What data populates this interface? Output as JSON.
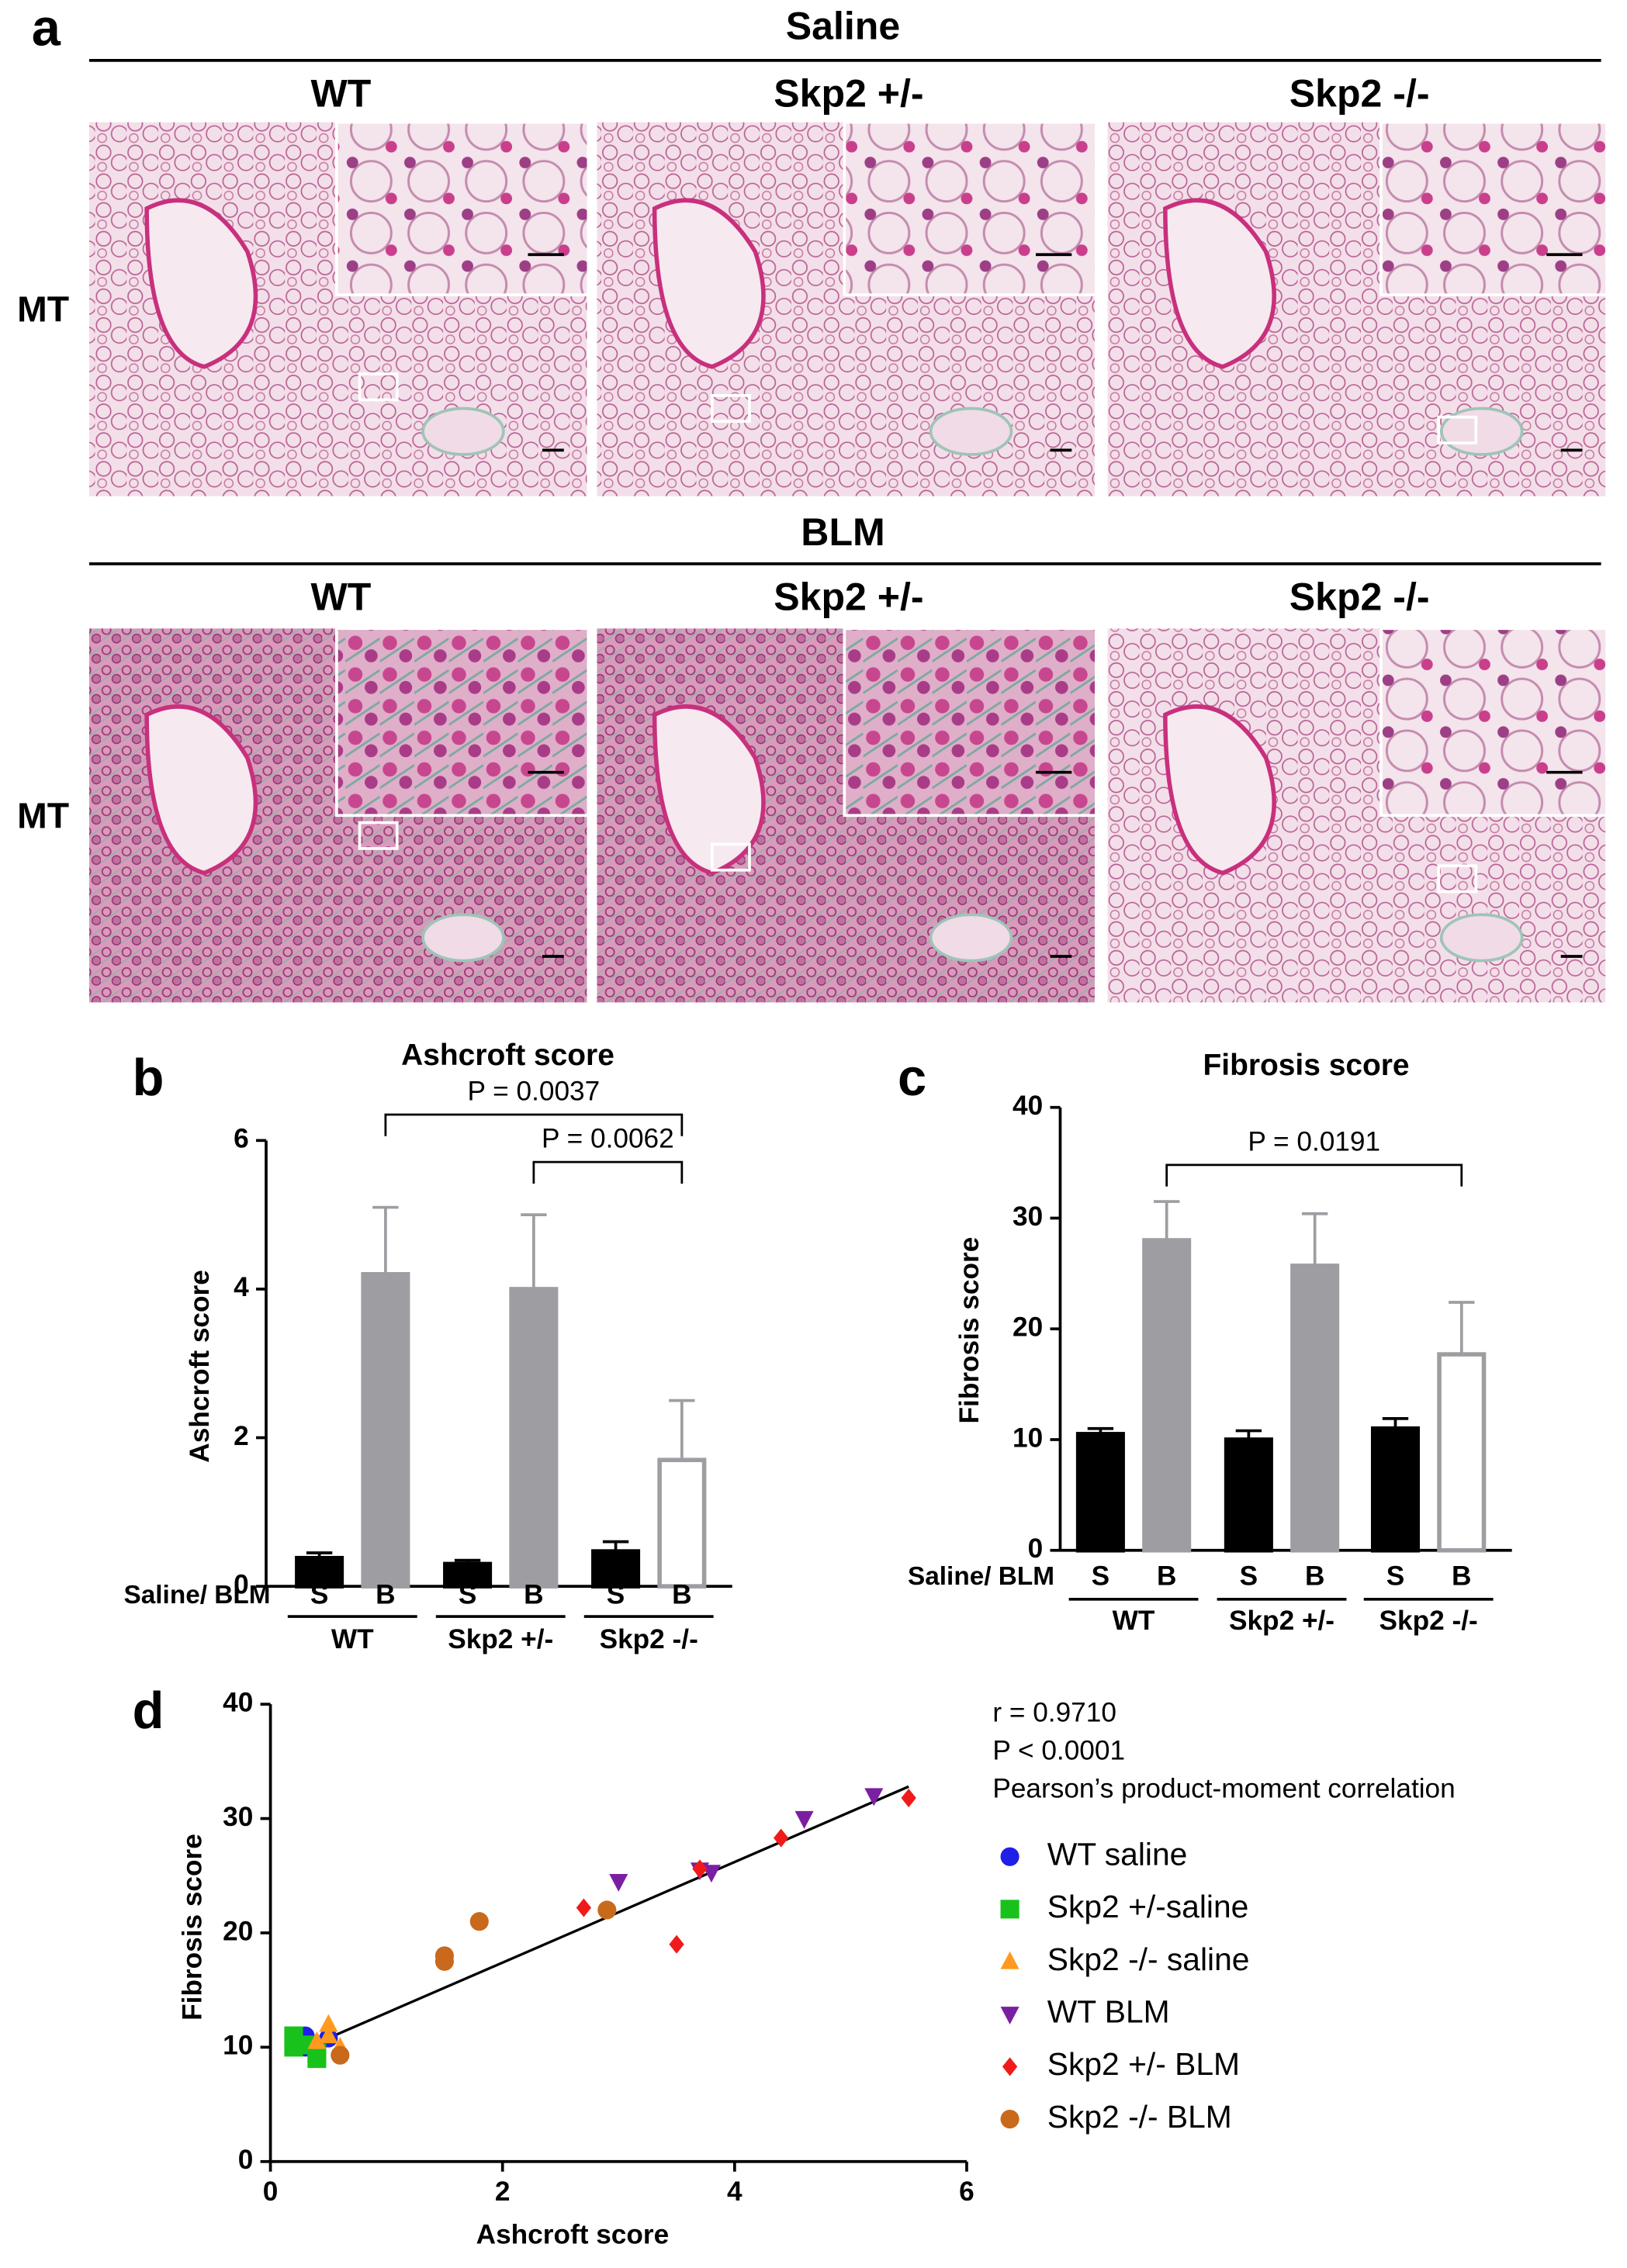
{
  "panel_a": {
    "label": "a",
    "conditions": [
      "Saline",
      "BLM"
    ],
    "genotypes": [
      "WT",
      "Skp2 +/-",
      "Skp2 -/-"
    ],
    "stain": "MT"
  },
  "chart_data": [
    {
      "type": "bar",
      "panel_label": "b",
      "title": "Ashcroft score",
      "ylabel": "Ashcroft score",
      "category_axis_label": "Saline/ BLM",
      "categories": [
        "S",
        "B",
        "S",
        "B",
        "S",
        "B"
      ],
      "groups": [
        "WT",
        "Skp2 +/-",
        "Skp2 -/-"
      ],
      "values": [
        0.38,
        4.2,
        0.3,
        4.0,
        0.47,
        1.7
      ],
      "errors": [
        0.07,
        0.9,
        0.05,
        1.0,
        0.13,
        0.8
      ],
      "colors": [
        "#000000",
        "#9d9da2",
        "#000000",
        "#9d9da2",
        "#000000",
        "#ffffff"
      ],
      "edgecolors": [
        "#000000",
        "#9d9da2",
        "#000000",
        "#9d9da2",
        "#000000",
        "#9d9da2"
      ],
      "ylim": [
        0,
        6
      ],
      "yticks": [
        0,
        2,
        4,
        6
      ],
      "comparisons": [
        {
          "text": "P = 0.0037",
          "from": 1,
          "to": 5
        },
        {
          "text": "P = 0.0062",
          "from": 3,
          "to": 5
        }
      ]
    },
    {
      "type": "bar",
      "panel_label": "c",
      "title": "Fibrosis score",
      "ylabel": "Fibrosis score",
      "category_axis_label": "Saline/ BLM",
      "categories": [
        "S",
        "B",
        "S",
        "B",
        "S",
        "B"
      ],
      "groups": [
        "WT",
        "Skp2 +/-",
        "Skp2 -/-"
      ],
      "values": [
        10.5,
        28,
        10,
        25.7,
        11,
        17.7
      ],
      "errors": [
        0.5,
        3.5,
        0.8,
        4.7,
        0.9,
        4.7
      ],
      "colors": [
        "#000000",
        "#9d9da2",
        "#000000",
        "#9d9da2",
        "#000000",
        "#ffffff"
      ],
      "edgecolors": [
        "#000000",
        "#9d9da2",
        "#000000",
        "#9d9da2",
        "#000000",
        "#9d9da2"
      ],
      "ylim": [
        0,
        40
      ],
      "yticks": [
        0,
        10,
        20,
        30,
        40
      ],
      "comparisons": [
        {
          "text": "P = 0.0191",
          "from": 1,
          "to": 5
        }
      ]
    },
    {
      "type": "scatter",
      "panel_label": "d",
      "xlabel": "Ashcroft score",
      "ylabel": "Fibrosis score",
      "xlim": [
        0,
        6
      ],
      "xticks": [
        0,
        2,
        4,
        6
      ],
      "ylim": [
        0,
        40
      ],
      "yticks": [
        0,
        10,
        20,
        30,
        40
      ],
      "annotations": [
        "r = 0.9710",
        "P < 0.0001",
        "Pearson’s product-moment correlation"
      ],
      "fit_line": {
        "x": [
          0.5,
          5.5
        ],
        "y": [
          10.8,
          32.8
        ]
      },
      "series": [
        {
          "name": "WT saline",
          "color": "#1f1fe6",
          "marker": "o",
          "x": [
            0.3,
            0.3,
            0.3,
            0.5,
            0.3
          ],
          "y": [
            10.5,
            11,
            10,
            10.8,
            10.3
          ]
        },
        {
          "name": "Skp2 +/-saline",
          "color": "#19c21a",
          "marker": "s",
          "x": [
            0.2,
            0.2,
            0.4,
            0.3,
            0.4
          ],
          "y": [
            11,
            10,
            9.5,
            10.2,
            9
          ]
        },
        {
          "name": "Skp2 -/- saline",
          "color": "#ff9a1e",
          "marker": "^",
          "x": [
            0.5,
            0.5,
            0.6,
            0.4
          ],
          "y": [
            12,
            11,
            10,
            10.5
          ]
        },
        {
          "name": "WT BLM",
          "color": "#7b1fa2",
          "marker": "v",
          "x": [
            3.0,
            3.8,
            4.6,
            5.2,
            3.7
          ],
          "y": [
            24.5,
            25.3,
            30,
            32,
            25.5
          ]
        },
        {
          "name": "Skp2 +/- BLM",
          "color": "#f01a1a",
          "marker": "D",
          "x": [
            2.7,
            3.5,
            3.7,
            4.4,
            5.5
          ],
          "y": [
            22.2,
            19,
            25.6,
            28.3,
            31.8
          ]
        },
        {
          "name": "Skp2 -/- BLM",
          "color": "#c8691c",
          "marker": "o",
          "x": [
            0.6,
            1.5,
            1.5,
            1.8,
            2.9
          ],
          "y": [
            9.3,
            17.5,
            18,
            21,
            22
          ]
        }
      ]
    }
  ]
}
